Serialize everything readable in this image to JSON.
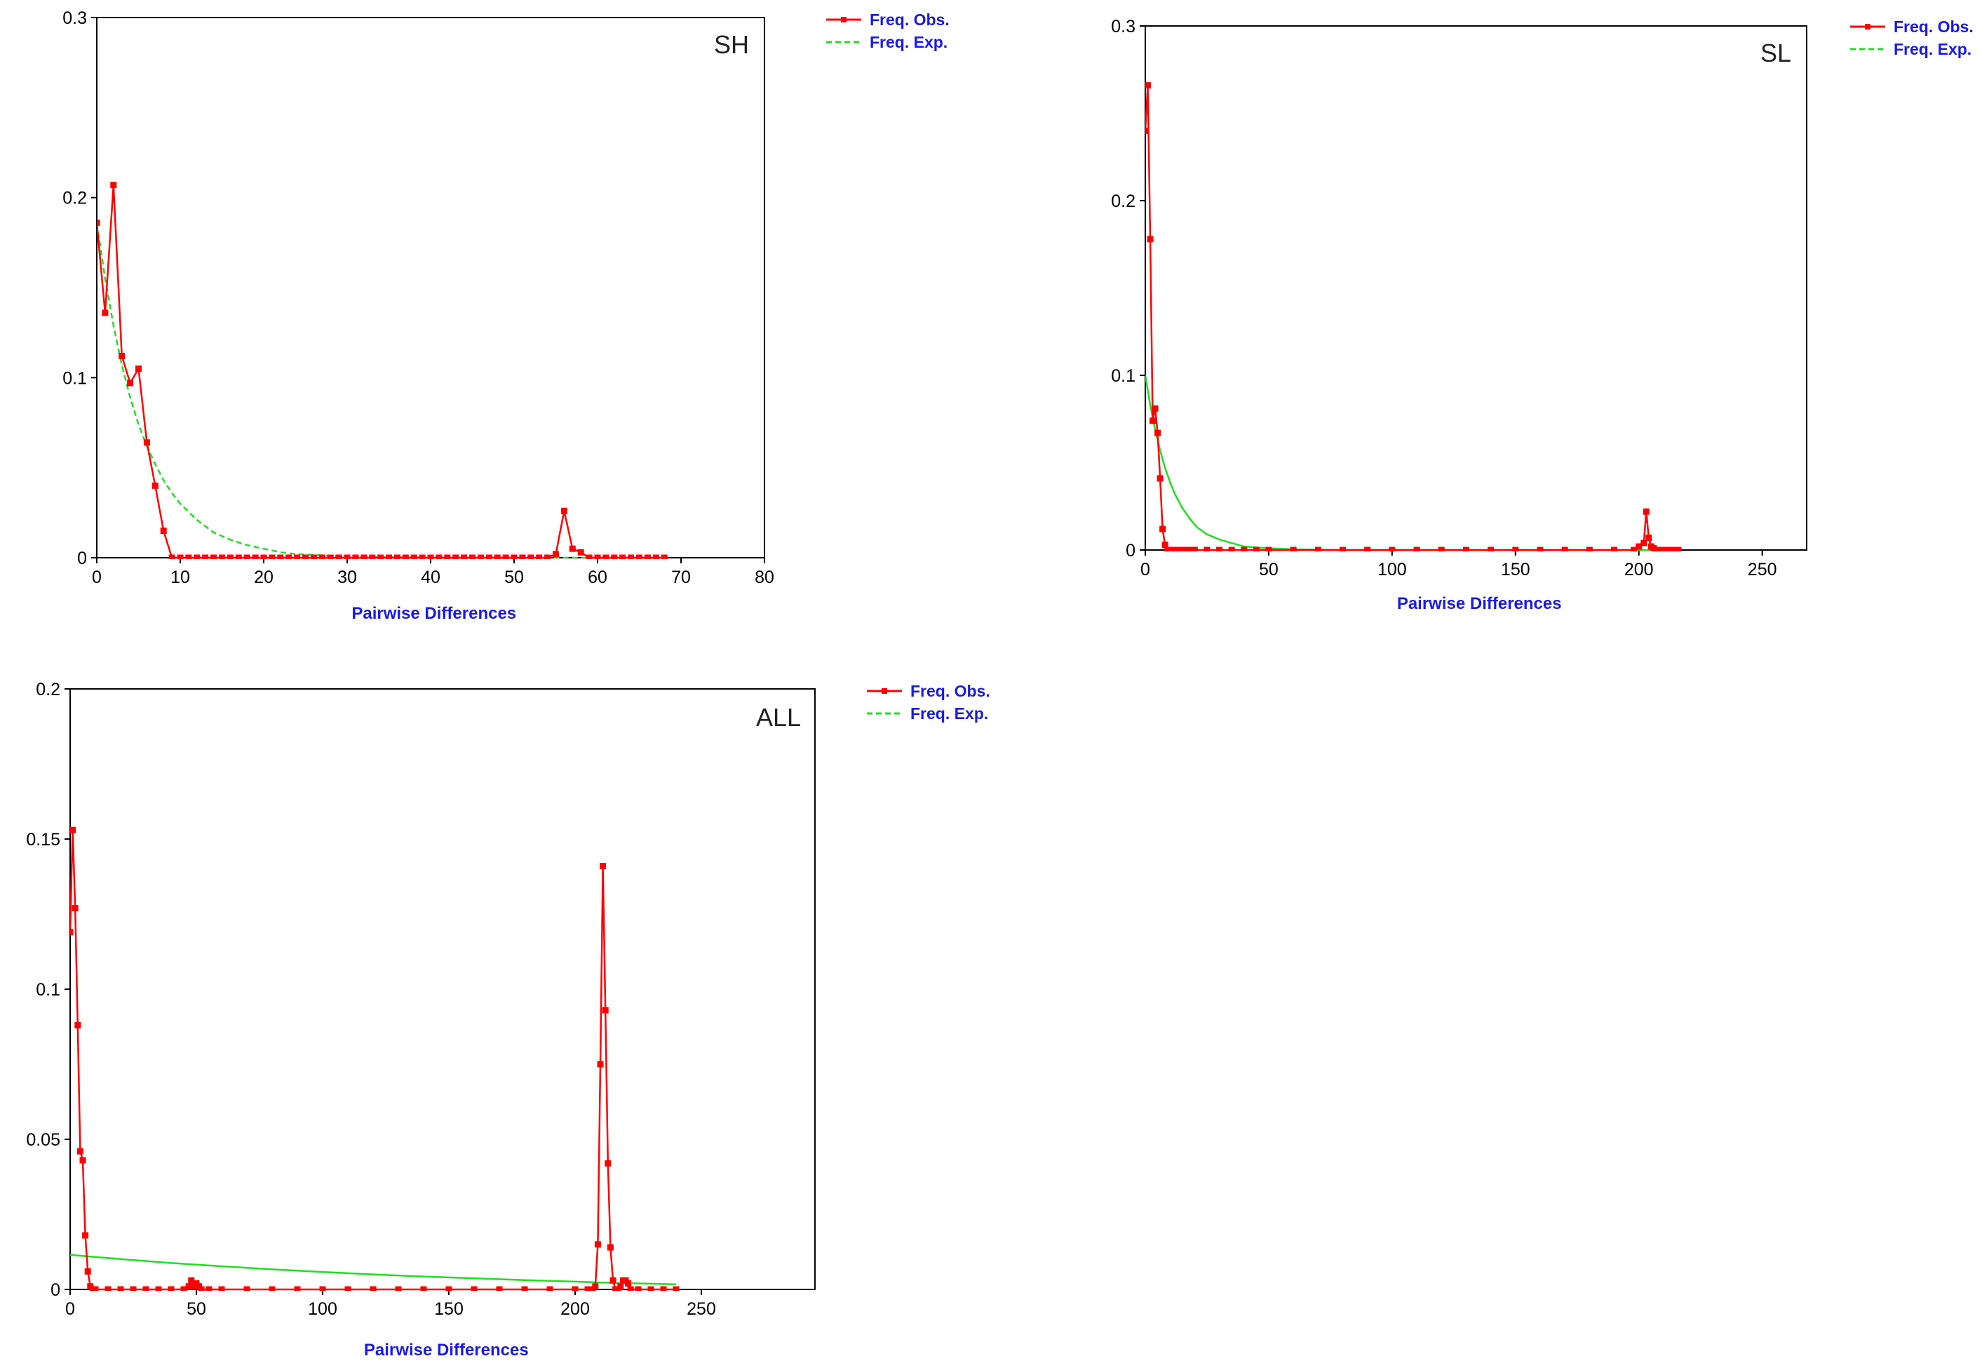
{
  "colors": {
    "observed": "#ff0000",
    "expected": "#22dd22",
    "axis_title": "#1a1ae6",
    "frame": "#000000"
  },
  "chart_data": [
    {
      "type": "line",
      "panel_label": "SH",
      "xlabel": "Pairwise Differences",
      "ylabel": "",
      "xlim": [
        0,
        80
      ],
      "ylim": [
        0,
        0.3
      ],
      "x_ticks": [
        0,
        10,
        20,
        30,
        40,
        50,
        60,
        70,
        80
      ],
      "y_ticks": [
        0,
        0.1,
        0.2,
        0.3
      ],
      "y_tick_labels": [
        "0",
        "0.1",
        "0.2",
        "0.3"
      ],
      "legend": {
        "placement": "top-right-outside",
        "entries": [
          "Freq. Obs.",
          "Freq. Exp."
        ]
      },
      "series": [
        {
          "name": "Freq. Obs.",
          "style": "solid-with-markers",
          "x": [
            0,
            1,
            2,
            3,
            4,
            5,
            6,
            7,
            8,
            9,
            10,
            11,
            12,
            13,
            14,
            15,
            16,
            17,
            18,
            19,
            20,
            21,
            22,
            23,
            24,
            25,
            26,
            27,
            28,
            29,
            30,
            31,
            32,
            33,
            34,
            35,
            36,
            37,
            38,
            39,
            40,
            41,
            42,
            43,
            44,
            45,
            46,
            47,
            48,
            49,
            50,
            51,
            52,
            53,
            54,
            55,
            56,
            57,
            58,
            59,
            60,
            61,
            62,
            63,
            64,
            65,
            66,
            67,
            68
          ],
          "y": [
            0.186,
            0.136,
            0.207,
            0.112,
            0.097,
            0.105,
            0.064,
            0.04,
            0.015,
            0,
            0,
            0,
            0,
            0,
            0,
            0,
            0,
            0,
            0,
            0,
            0,
            0,
            0,
            0,
            0,
            0,
            0,
            0,
            0,
            0,
            0,
            0,
            0,
            0,
            0,
            0,
            0,
            0,
            0,
            0,
            0,
            0,
            0,
            0,
            0,
            0,
            0,
            0,
            0,
            0,
            0,
            0,
            0,
            0,
            0,
            0.002,
            0.026,
            0.005,
            0.003,
            0,
            0,
            0,
            0,
            0,
            0,
            0,
            0,
            0,
            0
          ]
        },
        {
          "name": "Freq. Exp.",
          "style": "dashed",
          "x": [
            0,
            1,
            2,
            3,
            4,
            5,
            6,
            7,
            8,
            9,
            10,
            12,
            14,
            16,
            18,
            20,
            22,
            24,
            26,
            28,
            30,
            35,
            40,
            45,
            50,
            55,
            60,
            65,
            68
          ],
          "y": [
            0.186,
            0.155,
            0.129,
            0.107,
            0.089,
            0.074,
            0.062,
            0.052,
            0.043,
            0.036,
            0.03,
            0.021,
            0.014,
            0.01,
            0.007,
            0.005,
            0.003,
            0.002,
            0.0016,
            0.0011,
            0.0008,
            0.0003,
            0.0001,
            0,
            0,
            0,
            0,
            0,
            0
          ]
        }
      ]
    },
    {
      "type": "line",
      "panel_label": "SL",
      "xlabel": "Pairwise Differences",
      "ylabel": "",
      "xlim": [
        0,
        268
      ],
      "ylim": [
        0,
        0.3
      ],
      "x_ticks": [
        0,
        50,
        100,
        150,
        200,
        250
      ],
      "y_ticks": [
        0,
        0.1,
        0.2,
        0.3
      ],
      "y_tick_labels": [
        "0",
        "0.1",
        "0.2",
        "0.3"
      ],
      "legend": {
        "placement": "top-right-outside",
        "entries": [
          "Freq. Obs.",
          "Freq. Exp."
        ]
      },
      "series": [
        {
          "name": "Freq. Obs.",
          "style": "solid-with-markers",
          "x": [
            0,
            1,
            2,
            3,
            4,
            5,
            6,
            7,
            8,
            9,
            10,
            12,
            14,
            16,
            18,
            20,
            25,
            30,
            35,
            40,
            45,
            50,
            60,
            70,
            80,
            90,
            100,
            110,
            120,
            130,
            140,
            150,
            160,
            170,
            180,
            190,
            198,
            200,
            202,
            203,
            204,
            205,
            206,
            208,
            210,
            212,
            214,
            216
          ],
          "y": [
            0.24,
            0.266,
            0.178,
            0.074,
            0.081,
            0.067,
            0.041,
            0.012,
            0.003,
            0,
            0,
            0,
            0,
            0,
            0,
            0,
            0,
            0,
            0,
            0,
            0,
            0,
            0,
            0,
            0,
            0,
            0,
            0,
            0,
            0,
            0,
            0,
            0,
            0,
            0,
            0,
            0,
            0.002,
            0.004,
            0.022,
            0.007,
            0.002,
            0.001,
            0,
            0,
            0,
            0,
            0
          ]
        },
        {
          "name": "Freq. Exp.",
          "style": "solid",
          "x": [
            0,
            2,
            4,
            6,
            8,
            10,
            12,
            15,
            18,
            21,
            25,
            30,
            35,
            40,
            45,
            50,
            60,
            80,
            100,
            150,
            200,
            216
          ],
          "y": [
            0.1,
            0.083,
            0.069,
            0.057,
            0.047,
            0.039,
            0.032,
            0.024,
            0.018,
            0.013,
            0.009,
            0.006,
            0.004,
            0.002,
            0.0015,
            0.001,
            0.0004,
            0,
            0,
            0,
            0,
            0
          ]
        }
      ]
    },
    {
      "type": "line",
      "panel_label": "ALL",
      "xlabel": "Pairwise Differences",
      "ylabel": "",
      "xlim": [
        0,
        295
      ],
      "ylim": [
        0,
        0.2
      ],
      "x_ticks": [
        0,
        50,
        100,
        150,
        200,
        250
      ],
      "y_ticks": [
        0,
        0.05,
        0.1,
        0.15,
        0.2
      ],
      "y_tick_labels": [
        "0",
        "0.05",
        "0.1",
        "0.15",
        "0.2"
      ],
      "legend": {
        "placement": "top-right-outside",
        "entries": [
          "Freq. Obs.",
          "Freq. Exp."
        ]
      },
      "series": [
        {
          "name": "Freq. Obs.",
          "style": "solid-with-markers",
          "x": [
            0,
            1,
            2,
            3,
            4,
            5,
            6,
            7,
            8,
            9,
            10,
            15,
            20,
            25,
            30,
            35,
            40,
            45,
            47,
            48,
            49,
            50,
            51,
            52,
            55,
            60,
            70,
            80,
            90,
            100,
            110,
            120,
            130,
            140,
            150,
            160,
            170,
            180,
            190,
            200,
            205,
            207,
            208,
            209,
            210,
            211,
            212,
            213,
            214,
            215,
            216,
            217,
            218,
            219,
            220,
            221,
            222,
            225,
            230,
            235,
            240
          ],
          "y": [
            0.119,
            0.153,
            0.127,
            0.088,
            0.046,
            0.043,
            0.018,
            0.006,
            0.001,
            0,
            0,
            0,
            0,
            0,
            0,
            0,
            0,
            0,
            0.001,
            0.003,
            0.001,
            0.002,
            0.001,
            0,
            0,
            0,
            0,
            0,
            0,
            0,
            0,
            0,
            0,
            0,
            0,
            0,
            0,
            0,
            0,
            0,
            0,
            0,
            0.001,
            0.015,
            0.075,
            0.141,
            0.093,
            0.042,
            0.014,
            0.003,
            0,
            0,
            0.001,
            0.003,
            0.003,
            0.002,
            0,
            0,
            0,
            0,
            0
          ]
        },
        {
          "name": "Freq. Exp.",
          "style": "solid",
          "x": [
            0,
            20,
            40,
            60,
            80,
            100,
            120,
            140,
            160,
            180,
            200,
            210,
            220,
            230,
            240
          ],
          "y": [
            0.0115,
            0.0101,
            0.0088,
            0.0077,
            0.0067,
            0.0058,
            0.005,
            0.0043,
            0.0037,
            0.0031,
            0.0026,
            0.0023,
            0.0021,
            0.0019,
            0.0017
          ]
        }
      ]
    }
  ]
}
